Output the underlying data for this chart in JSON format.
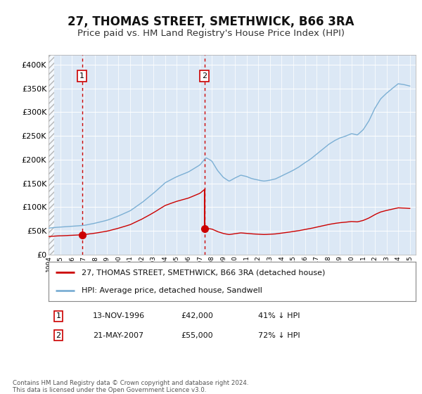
{
  "title": "27, THOMAS STREET, SMETHWICK, B66 3RA",
  "subtitle": "Price paid vs. HM Land Registry's House Price Index (HPI)",
  "title_fontsize": 12,
  "subtitle_fontsize": 9.5,
  "background_color": "#ffffff",
  "plot_bg_color": "#dce8f5",
  "grid_color": "#ffffff",
  "ylim": [
    0,
    420000
  ],
  "yticks": [
    0,
    50000,
    100000,
    150000,
    200000,
    250000,
    300000,
    350000,
    400000
  ],
  "ytick_labels": [
    "£0",
    "£50K",
    "£100K",
    "£150K",
    "£200K",
    "£250K",
    "£300K",
    "£350K",
    "£400K"
  ],
  "legend_label_property": "27, THOMAS STREET, SMETHWICK, B66 3RA (detached house)",
  "legend_label_hpi": "HPI: Average price, detached house, Sandwell",
  "property_color": "#cc0000",
  "hpi_color": "#7bafd4",
  "purchase1_year": 1996.88,
  "purchase1_price": 42000,
  "purchase2_year": 2007.38,
  "purchase2_price": 55000,
  "footnote": "Contains HM Land Registry data © Crown copyright and database right 2024.\nThis data is licensed under the Open Government Licence v3.0.",
  "table_data": [
    [
      "1",
      "13-NOV-1996",
      "£42,000",
      "41% ↓ HPI"
    ],
    [
      "2",
      "21-MAY-2007",
      "£55,000",
      "72% ↓ HPI"
    ]
  ],
  "xmin": 1994,
  "xmax": 2025.5,
  "xticks": [
    1994,
    1995,
    1996,
    1997,
    1998,
    1999,
    2000,
    2001,
    2002,
    2003,
    2004,
    2005,
    2006,
    2007,
    2008,
    2009,
    2010,
    2011,
    2012,
    2013,
    2014,
    2015,
    2016,
    2017,
    2018,
    2019,
    2020,
    2021,
    2022,
    2023,
    2024,
    2025
  ],
  "hatch_end": 1994.5
}
